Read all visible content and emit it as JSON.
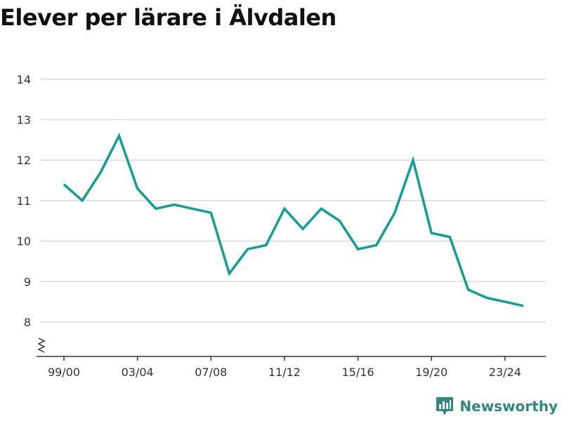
{
  "colors": {
    "line": "#0e9f96",
    "grid": "#d9d9d9",
    "axis": "#333333",
    "brand": "#2e8a7f"
  },
  "brand": {
    "name": "Newsworthy",
    "icon": "bar-chart-icon"
  },
  "chart_data": {
    "type": "line",
    "title": "Elever per lärare i Älvdalen",
    "xlabel": "",
    "ylabel": "",
    "ylim": [
      7.2,
      14.2
    ],
    "yticks": [
      8,
      9,
      10,
      11,
      12,
      13,
      14
    ],
    "y_axis_break": true,
    "grid": "horizontal",
    "categories": [
      "99/00",
      "00/01",
      "01/02",
      "02/03",
      "03/04",
      "04/05",
      "05/06",
      "06/07",
      "07/08",
      "08/09",
      "09/10",
      "10/11",
      "11/12",
      "12/13",
      "13/14",
      "14/15",
      "15/16",
      "16/17",
      "17/18",
      "18/19",
      "19/20",
      "20/21",
      "21/22",
      "22/23",
      "23/24",
      "24/25"
    ],
    "xticklabels": [
      "99/00",
      "03/04",
      "07/08",
      "11/12",
      "15/16",
      "19/20",
      "23/24"
    ],
    "series": [
      {
        "values": [
          11.4,
          11.0,
          11.7,
          12.6,
          11.3,
          10.8,
          10.9,
          10.8,
          10.7,
          9.2,
          9.8,
          9.9,
          10.8,
          10.3,
          10.8,
          10.5,
          9.8,
          9.9,
          10.7,
          12.0,
          10.2,
          10.1,
          8.8,
          8.6,
          8.5,
          8.4
        ]
      }
    ]
  }
}
